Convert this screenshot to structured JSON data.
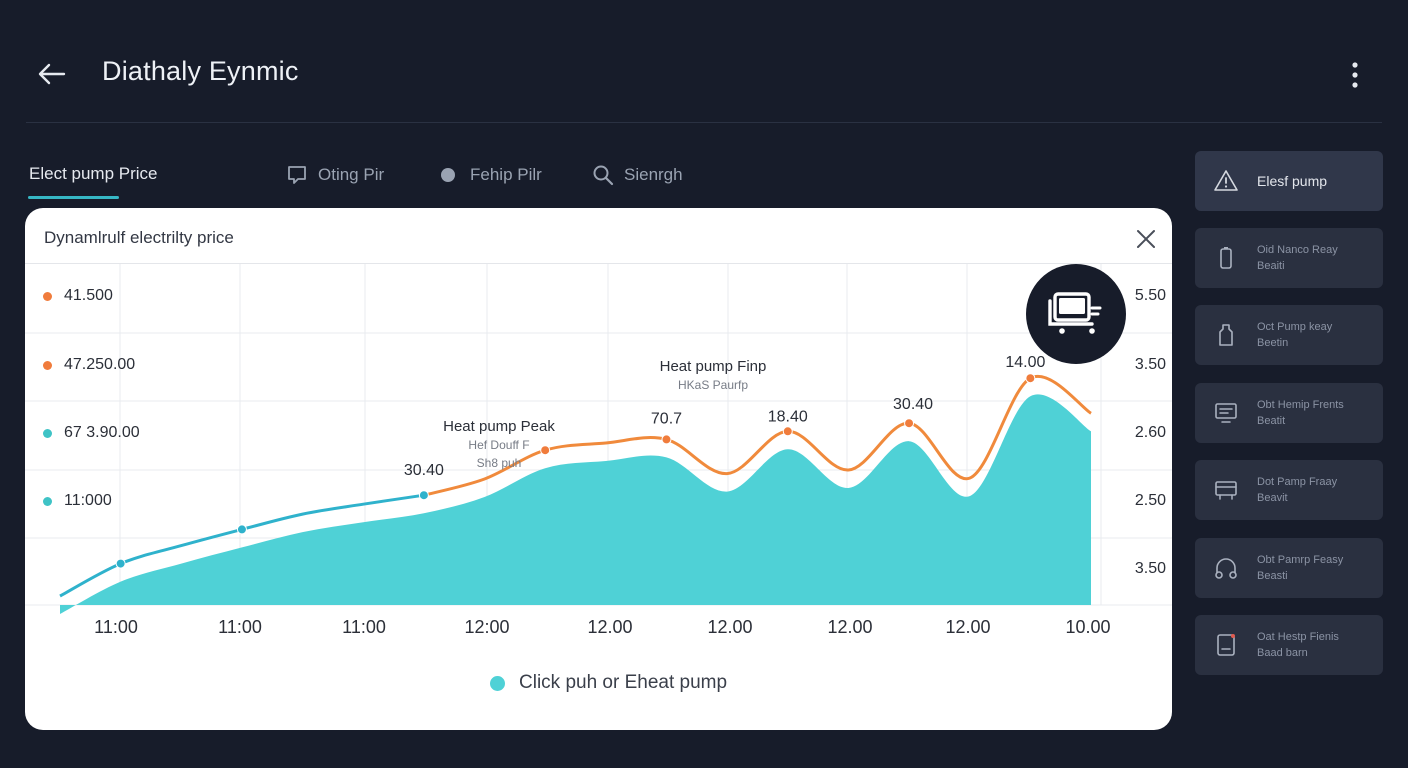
{
  "header": {
    "title": "Diathaly Eynmic",
    "back_icon": "arrow-left-icon",
    "menu_icon": "more-vertical-icon"
  },
  "tabs": [
    {
      "label": "Elect pump Price",
      "icon": "",
      "active": true
    },
    {
      "label": "Oting Pir",
      "icon": "chat-bubble-icon",
      "active": false
    },
    {
      "label": "Fehip Pilr",
      "icon": "dot-icon",
      "active": false
    },
    {
      "label": "Sienrgh",
      "icon": "search-icon",
      "active": false
    }
  ],
  "sidebar": {
    "items": [
      {
        "line1": "Elesf pump",
        "line2": "",
        "icon": "warning-icon"
      },
      {
        "line1": "Oid Nanco Reay",
        "line2": "Beaiti",
        "icon": "battery-icon"
      },
      {
        "line1": "Oct Pump keay",
        "line2": "Beetin",
        "icon": "bottle-icon"
      },
      {
        "line1": "Obt Hemip Frents",
        "line2": "Beatit",
        "icon": "monitor-icon"
      },
      {
        "line1": "Dot Pamp Fraay",
        "line2": "Beavit",
        "icon": "oven-icon"
      },
      {
        "line1": "Obt Pamrp Feasy",
        "line2": "Beasti",
        "icon": "headphones-icon"
      },
      {
        "line1": "Oat Hestp Fienis",
        "line2": "Baad barn",
        "icon": "tablet-icon"
      }
    ]
  },
  "card": {
    "title": "Dynamlrulf electrilty price",
    "close_icon": "close-icon",
    "badge_icon": "heat-pump-unit-icon",
    "footer_legend": "Click puh or Eheat pump",
    "colors": {
      "area": "#4fd1d6",
      "line_blue": "#2fb2cc",
      "line_orange": "#f08a3c",
      "dot_orange": "#f07c3c",
      "dot_teal": "#3fc3c6"
    }
  },
  "chart_data": {
    "type": "area",
    "left_labels": [
      {
        "text": "41.500",
        "color": "#f07c3c"
      },
      {
        "text": "47.250.00",
        "color": "#f07c3c"
      },
      {
        "text": "67 3.90.00",
        "color": "#3fc3c6"
      },
      {
        "text": "11:000",
        "color": "#3fc3c6"
      }
    ],
    "right_labels": [
      "5.50",
      "3.50",
      "2.60",
      "2.50",
      "3.50"
    ],
    "x_labels": [
      "11:00",
      "11:00",
      "11:00",
      "12:00",
      "12.00",
      "12.00",
      "12.00",
      "12.00",
      "10.00"
    ],
    "x": [
      0,
      0.5,
      1,
      1.5,
      2,
      2.5,
      3,
      3.5,
      4,
      4.5,
      5,
      5.5,
      6,
      6.5,
      7,
      7.5,
      8,
      8.5
    ],
    "series": [
      {
        "values": [
          0.1,
          0.46,
          0.66,
          0.84,
          1.01,
          1.12,
          1.22,
          1.4,
          1.72,
          1.8,
          1.84,
          1.46,
          1.93,
          1.5,
          2.02,
          1.41,
          2.52,
          2.13
        ]
      }
    ],
    "annotations": [
      {
        "text": "30.40"
      },
      {
        "text": "Heat pump Peak",
        "sub1": "Hef Douff F",
        "sub2": "Sh8 puh"
      },
      {
        "text": "70.7"
      },
      {
        "text": "Heat pump Finp",
        "sub1": "HKaS Paurfp"
      },
      {
        "text": "18.40"
      },
      {
        "text": "30.40"
      },
      {
        "text": "14.00"
      }
    ]
  }
}
